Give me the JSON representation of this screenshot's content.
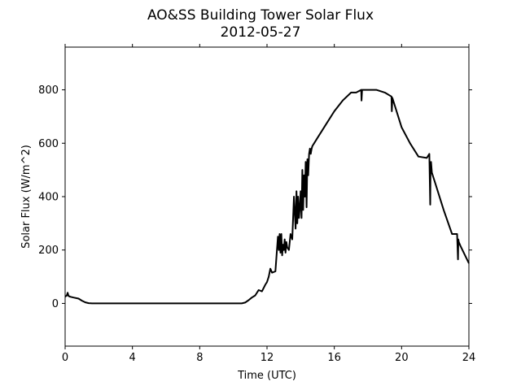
{
  "chart_data": {
    "type": "line",
    "title": "AO&SS Building Tower Solar Flux",
    "subtitle": "2012-05-27",
    "xlabel": "Time (UTC)",
    "ylabel": "Solar Flux (W/m^2)",
    "xlim": [
      0,
      24
    ],
    "ylim": [
      -160,
      960
    ],
    "xticks": [
      0,
      4,
      8,
      12,
      16,
      20,
      24
    ],
    "yticks": [
      0,
      200,
      400,
      600,
      800
    ],
    "grid": false,
    "line_color": "#000000",
    "series": [
      {
        "x": [
          0.0,
          0.1,
          0.15,
          0.2,
          0.3,
          0.5,
          0.8,
          1.0,
          1.2,
          1.4,
          1.6,
          2.0,
          4.0,
          6.0,
          8.0,
          10.0,
          10.5,
          10.7,
          10.9,
          11.1,
          11.3,
          11.5,
          11.7,
          11.9,
          12.0,
          12.1,
          12.2,
          12.3,
          12.5,
          12.65,
          12.7,
          12.75,
          12.8,
          12.85,
          12.9,
          12.95,
          13.0,
          13.05,
          13.1,
          13.15,
          13.2,
          13.3,
          13.4,
          13.5,
          13.6,
          13.7,
          13.75,
          13.8,
          13.85,
          13.9,
          13.95,
          14.0,
          14.05,
          14.1,
          14.15,
          14.2,
          14.25,
          14.3,
          14.35,
          14.4,
          14.45,
          14.5,
          14.55,
          14.6,
          14.65,
          14.7,
          14.8,
          15.0,
          15.5,
          16.0,
          16.5,
          17.0,
          17.3,
          17.6,
          17.62,
          17.65,
          18.0,
          18.5,
          19.0,
          19.4,
          19.42,
          19.45,
          19.5,
          20.0,
          20.5,
          21.0,
          21.5,
          21.65,
          21.7,
          21.72,
          21.75,
          21.8,
          22.0,
          22.5,
          23.0,
          23.3,
          23.35,
          23.37,
          23.4,
          23.5,
          24.0
        ],
        "y": [
          25,
          30,
          40,
          28,
          25,
          22,
          18,
          10,
          4,
          1,
          0,
          0,
          0,
          0,
          0,
          0,
          0,
          3,
          12,
          22,
          30,
          50,
          45,
          70,
          80,
          100,
          130,
          115,
          120,
          250,
          200,
          260,
          190,
          260,
          180,
          220,
          200,
          240,
          190,
          230,
          210,
          200,
          260,
          240,
          400,
          280,
          420,
          300,
          400,
          320,
          360,
          420,
          320,
          500,
          350,
          480,
          400,
          530,
          360,
          540,
          480,
          560,
          580,
          560,
          580,
          590,
          600,
          620,
          670,
          720,
          760,
          790,
          790,
          800,
          760,
          800,
          800,
          800,
          790,
          775,
          720,
          770,
          760,
          660,
          600,
          550,
          545,
          560,
          370,
          520,
          530,
          490,
          450,
          350,
          260,
          260,
          165,
          240,
          230,
          215,
          150
        ]
      }
    ]
  }
}
